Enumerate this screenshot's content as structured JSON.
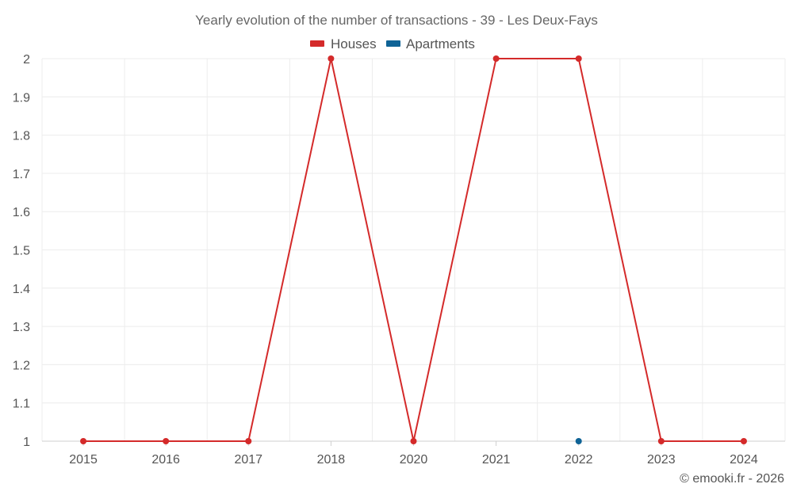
{
  "chart_data": {
    "type": "line",
    "title": "Yearly evolution of the number of transactions - 39 - Les Deux-Fays",
    "categories": [
      "2015",
      "2016",
      "2017",
      "2018",
      "2020",
      "2021",
      "2022",
      "2023",
      "2024"
    ],
    "series": [
      {
        "name": "Houses",
        "color": "#d42a2a",
        "values": [
          1,
          1,
          1,
          2,
          1,
          2,
          2,
          1,
          1
        ]
      },
      {
        "name": "Apartments",
        "color": "#0f6396",
        "values": [
          null,
          null,
          null,
          null,
          null,
          null,
          1,
          null,
          null
        ]
      }
    ],
    "y_ticks": [
      "1",
      "1.1",
      "1.2",
      "1.3",
      "1.4",
      "1.5",
      "1.6",
      "1.7",
      "1.8",
      "1.9",
      "2"
    ],
    "ylim": [
      1,
      2
    ],
    "grid": true,
    "legend_position": "top-center"
  },
  "credit": "© emooki.fr - 2026"
}
